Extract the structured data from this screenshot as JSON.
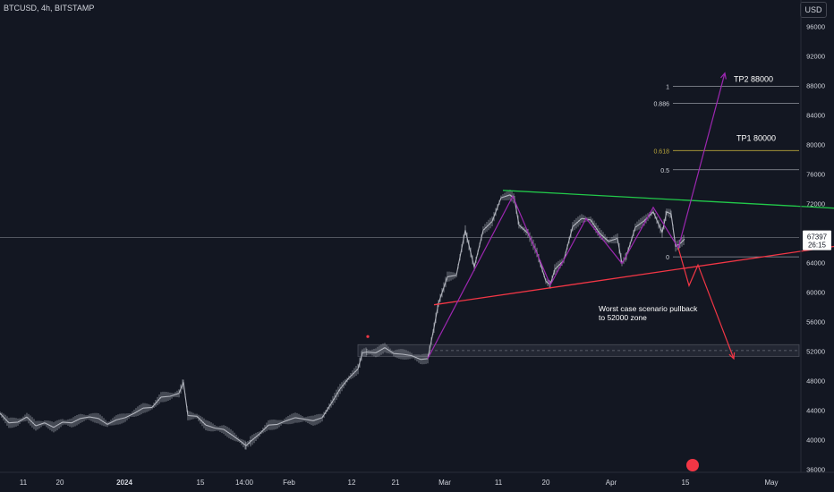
{
  "header": {
    "ticker": "BTCUSD, 4h, BITSTAMP",
    "currency": "USD"
  },
  "price_tag": {
    "price": "67397",
    "countdown": "26:15"
  },
  "chart_data": {
    "type": "line",
    "title": "BTCUSD, 4h, BITSTAMP",
    "y_ticks": [
      96000,
      92000,
      88000,
      84000,
      80000,
      76000,
      72000,
      64000,
      60000,
      56000,
      52000,
      48000,
      44000,
      40000,
      36000
    ],
    "ylim": [
      35600,
      99600
    ],
    "x_tick_labels": [
      "11",
      "20",
      "2024",
      "15",
      "14:00",
      "Feb",
      "12",
      "21",
      "Mar",
      "11",
      "20",
      "Apr",
      "15",
      "May"
    ],
    "grid": false,
    "series": [
      {
        "values": [
          [
            0,
            43600
          ],
          [
            10,
            42300
          ],
          [
            20,
            42400
          ],
          [
            30,
            43100
          ],
          [
            40,
            41900
          ],
          [
            50,
            42300
          ],
          [
            60,
            41700
          ],
          [
            70,
            42400
          ],
          [
            80,
            42300
          ],
          [
            90,
            42900
          ],
          [
            100,
            43100
          ],
          [
            110,
            42900
          ],
          [
            120,
            42100
          ],
          [
            130,
            42700
          ],
          [
            140,
            43000
          ],
          [
            150,
            43600
          ],
          [
            160,
            44300
          ],
          [
            170,
            44400
          ],
          [
            180,
            45800
          ],
          [
            190,
            45900
          ],
          [
            200,
            46300
          ],
          [
            205,
            47800
          ],
          [
            210,
            43300
          ],
          [
            220,
            43200
          ],
          [
            230,
            42000
          ],
          [
            240,
            41600
          ],
          [
            250,
            41400
          ],
          [
            260,
            40600
          ],
          [
            270,
            39700
          ],
          [
            275,
            39200
          ],
          [
            280,
            39800
          ],
          [
            290,
            40800
          ],
          [
            300,
            42000
          ],
          [
            310,
            42100
          ],
          [
            320,
            42600
          ],
          [
            330,
            43000
          ],
          [
            340,
            42800
          ],
          [
            350,
            42600
          ],
          [
            360,
            43000
          ],
          [
            370,
            44900
          ],
          [
            380,
            46900
          ],
          [
            390,
            48400
          ],
          [
            400,
            49600
          ],
          [
            405,
            51800
          ],
          [
            410,
            51900
          ],
          [
            420,
            51800
          ],
          [
            430,
            52500
          ],
          [
            440,
            51700
          ],
          [
            450,
            51600
          ],
          [
            460,
            51400
          ],
          [
            470,
            50900
          ],
          [
            478,
            51000
          ],
          [
            485,
            55200
          ],
          [
            490,
            58500
          ],
          [
            500,
            62100
          ],
          [
            510,
            62300
          ],
          [
            520,
            68400
          ],
          [
            530,
            63400
          ],
          [
            540,
            68400
          ],
          [
            550,
            69600
          ],
          [
            560,
            72800
          ],
          [
            570,
            73200
          ],
          [
            575,
            72600
          ],
          [
            580,
            69100
          ],
          [
            590,
            68000
          ],
          [
            600,
            65400
          ],
          [
            610,
            61500
          ],
          [
            615,
            61000
          ],
          [
            620,
            63100
          ],
          [
            630,
            64300
          ],
          [
            640,
            68900
          ],
          [
            650,
            70000
          ],
          [
            660,
            69800
          ],
          [
            670,
            68000
          ],
          [
            680,
            66900
          ],
          [
            690,
            67300
          ],
          [
            695,
            63900
          ],
          [
            700,
            64900
          ],
          [
            710,
            68800
          ],
          [
            720,
            69700
          ],
          [
            730,
            70900
          ],
          [
            740,
            68100
          ],
          [
            745,
            70900
          ],
          [
            750,
            70600
          ],
          [
            755,
            66200
          ],
          [
            760,
            66600
          ],
          [
            765,
            67200
          ]
        ]
      }
    ],
    "annotations": {
      "fib_levels": [
        {
          "label": "1",
          "value": 87900
        },
        {
          "label": "0.886",
          "value": 85600
        },
        {
          "label": "0.618",
          "value": 79200
        },
        {
          "label": "0.5",
          "value": 76600
        },
        {
          "label": "0",
          "value": 64800
        }
      ],
      "targets": [
        {
          "label": "TP2 88000",
          "value": 88000
        },
        {
          "label": "TP1 80000",
          "value": 80000
        }
      ],
      "note": "Worst case  scenario pullback\nto 52000 zone",
      "support_zone": [
        51300,
        52900
      ],
      "lines": {
        "resistance": {
          "color": "#22c94a",
          "points": [
            [
              562,
              73800
            ],
            [
              932,
              71400
            ]
          ]
        },
        "support": {
          "color": "#f23645",
          "points": [
            [
              485,
              58300
            ],
            [
              932,
              66200
            ]
          ]
        },
        "bull_path": {
          "color": "#9c27b0",
          "points": [
            [
              478,
              51000
            ],
            [
              573,
              73000
            ],
            [
              615,
              61000
            ],
            [
              655,
              70000
            ],
            [
              695,
              63900
            ],
            [
              730,
              71500
            ],
            [
              758,
              66000
            ],
            [
              810,
              89700
            ]
          ]
        },
        "bear_path": {
          "color": "#f23645",
          "points": [
            [
              758,
              66000
            ],
            [
              770,
              60900
            ],
            [
              780,
              63700
            ],
            [
              820,
              51000
            ]
          ]
        }
      }
    },
    "colors": {
      "background": "#131722",
      "candles": "#b2b5be",
      "axis_text": "#d1d4dc",
      "fib_618": "#b9a53a",
      "fib_line": "#9598a1",
      "last_price_line": "#787b86"
    }
  }
}
